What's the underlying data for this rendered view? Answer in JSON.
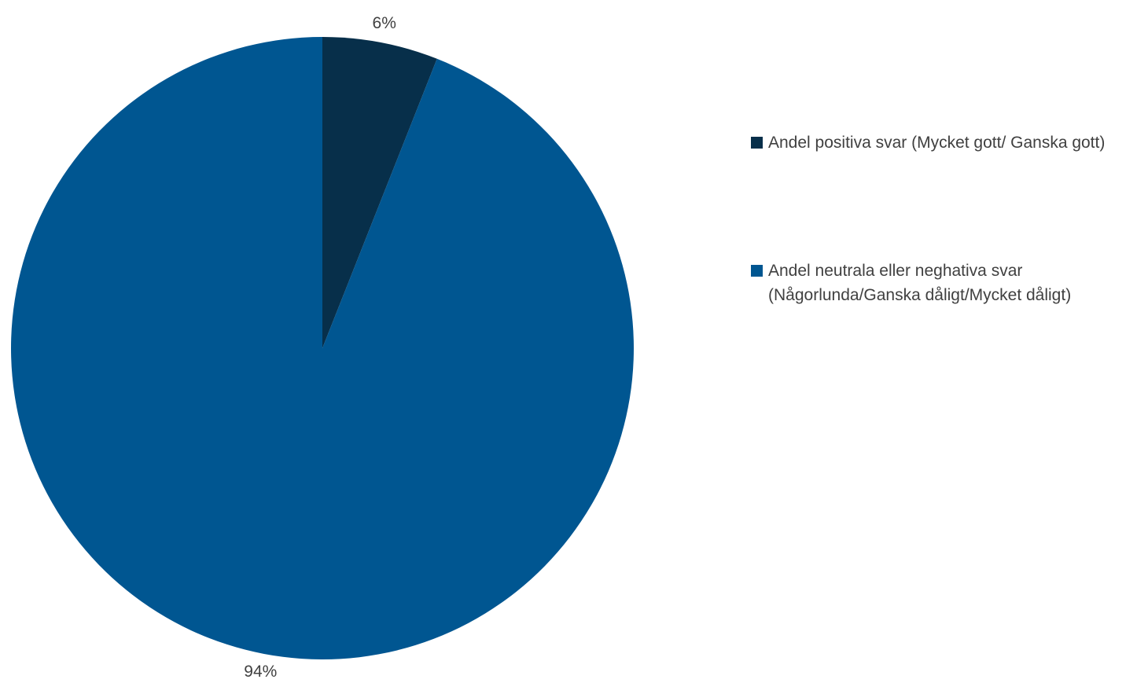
{
  "chart_data": {
    "type": "pie",
    "start_angle_deg": 0,
    "direction": "clockwise",
    "slices": [
      {
        "label": "Andel positiva svar (Mycket gott/ Ganska gott)",
        "value": 6,
        "display": "6%",
        "color": "#072f4a"
      },
      {
        "label": "Andel neutrala eller neghativa svar (Någorlunda/Ganska dåligt/Mycket dåligt)",
        "value": 94,
        "display": "94%",
        "color": "#005691"
      }
    ],
    "legend_position": "right"
  }
}
